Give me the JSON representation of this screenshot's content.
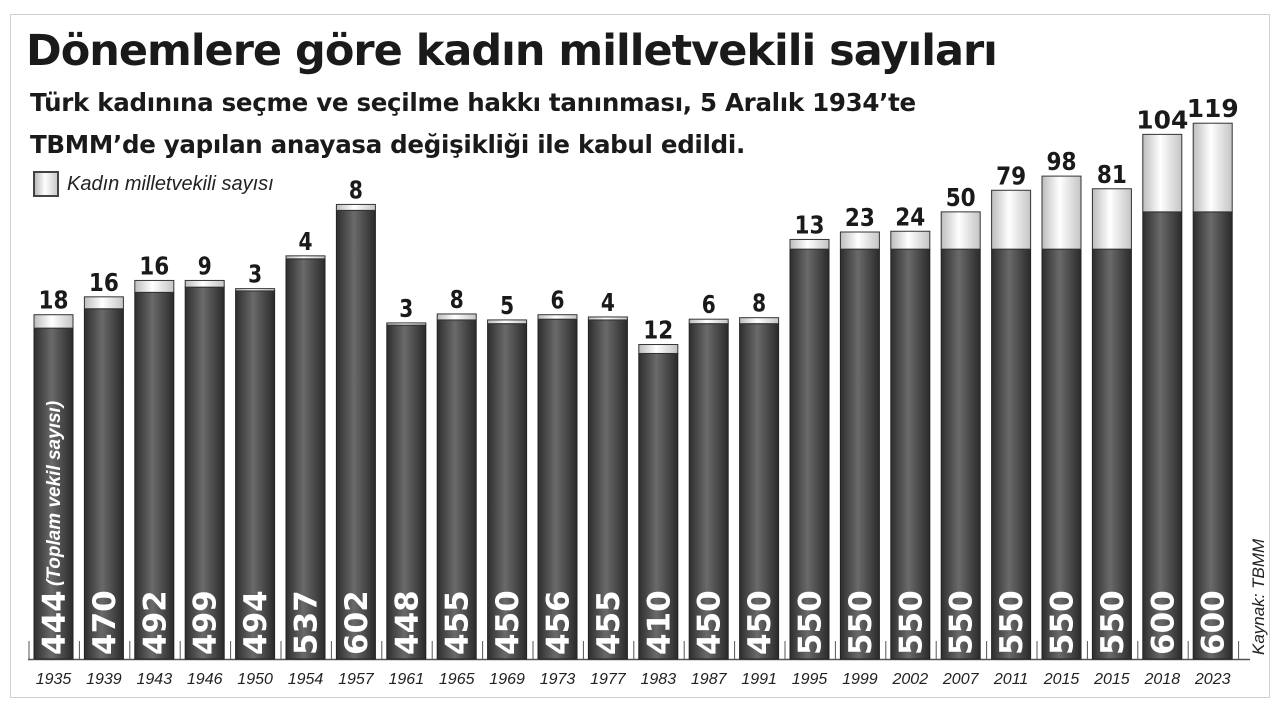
{
  "title": "Dönemlere göre kadın milletvekili sayıları",
  "subtitle_line1": "Türk kadınına seçme ve seçilme hakkı tanınması, 5 Aralık 1934’te",
  "subtitle_line2": "TBMM’de yapılan anayasa değişikliği ile  kabul edildi.",
  "source": "Kaynak: TBMM",
  "chart_data": {
    "type": "bar",
    "stacked": true,
    "title": "Dönemlere göre kadın milletvekili sayıları",
    "ylabel": "(Toplam vekil sayısı)",
    "legend": {
      "label": "Kadın milletvekili sayısı",
      "placement": "top-left"
    },
    "categories": [
      "1935",
      "1939",
      "1943",
      "1946",
      "1950",
      "1954",
      "1957",
      "1961",
      "1965",
      "1969",
      "1973",
      "1977",
      "1983",
      "1987",
      "1991",
      "1995",
      "1999",
      "2002",
      "2007",
      "2011",
      "2015",
      "2015",
      "2018",
      "2023"
    ],
    "series": [
      {
        "name": "(Toplam vekil sayısı)",
        "color": "#4a4a4a",
        "values": [
          444,
          470,
          492,
          499,
          494,
          537,
          602,
          448,
          455,
          450,
          456,
          455,
          410,
          450,
          450,
          550,
          550,
          550,
          550,
          550,
          550,
          550,
          600,
          600
        ]
      },
      {
        "name": "Kadın milletvekili sayısı",
        "color": "#e6e6e6",
        "values": [
          18,
          16,
          16,
          9,
          3,
          4,
          8,
          3,
          8,
          5,
          6,
          4,
          12,
          6,
          8,
          13,
          23,
          24,
          50,
          79,
          98,
          81,
          104,
          119
        ]
      }
    ],
    "ylim": [
      0,
      730
    ],
    "grid": false
  }
}
